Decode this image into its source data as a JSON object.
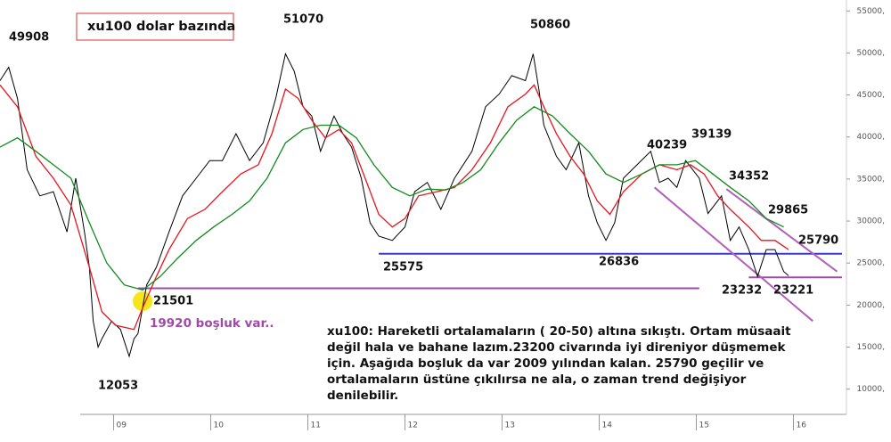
{
  "chart_data": {
    "type": "line",
    "title": "xu100 dolar bazında",
    "xlim": [
      2007.83,
      2016.546
    ],
    "ylim": [
      7000,
      56300
    ],
    "xticks": [
      {
        "value": 2009,
        "label": "09"
      },
      {
        "value": 2010,
        "label": "10"
      },
      {
        "value": 2011,
        "label": "11"
      },
      {
        "value": 2012,
        "label": "12"
      },
      {
        "value": 2013,
        "label": "13"
      },
      {
        "value": 2014,
        "label": "14"
      },
      {
        "value": 2015,
        "label": "15"
      },
      {
        "value": 2016,
        "label": "16"
      }
    ],
    "yticks": [
      {
        "value": 10000,
        "label": "10000,"
      },
      {
        "value": 15000,
        "label": "15000,"
      },
      {
        "value": 20000,
        "label": "20000,"
      },
      {
        "value": 25000,
        "label": "25000,"
      },
      {
        "value": 30000,
        "label": "30000,"
      },
      {
        "value": 35000,
        "label": "35000,"
      },
      {
        "value": 40000,
        "label": "40000,"
      },
      {
        "value": 45000,
        "label": "45000,"
      },
      {
        "value": 50000,
        "label": "50000,"
      },
      {
        "value": 55000,
        "label": "55000,"
      }
    ],
    "series": [
      {
        "color": "#000000",
        "x": [
          2007.83,
          2007.92,
          2008.01,
          2008.11,
          2008.24,
          2008.38,
          2008.52,
          2008.61,
          2008.7,
          2008.75,
          2008.79,
          2008.84,
          2008.88,
          2008.98,
          2009.07,
          2009.16,
          2009.21,
          2009.25,
          2009.34,
          2009.44,
          2009.57,
          2009.71,
          2009.85,
          2009.99,
          2010.12,
          2010.26,
          2010.4,
          2010.54,
          2010.67,
          2010.77,
          2010.86,
          2010.95,
          2011.04,
          2011.13,
          2011.27,
          2011.36,
          2011.45,
          2011.55,
          2011.64,
          2011.73,
          2011.87,
          2012.0,
          2012.1,
          2012.23,
          2012.37,
          2012.51,
          2012.69,
          2012.83,
          2012.97,
          2013.1,
          2013.24,
          2013.32,
          2013.38,
          2013.43,
          2013.56,
          2013.66,
          2013.79,
          2013.89,
          2013.98,
          2014.07,
          2014.16,
          2014.25,
          2014.39,
          2014.53,
          2014.62,
          2014.71,
          2014.8,
          2014.89,
          2015.03,
          2015.12,
          2015.26,
          2015.35,
          2015.44,
          2015.54,
          2015.63,
          2015.72,
          2015.81,
          2015.9,
          2015.95
        ],
        "values": [
          46700,
          48300,
          44600,
          36100,
          33000,
          33500,
          28700,
          35100,
          28700,
          24500,
          18100,
          15000,
          16000,
          18100,
          17100,
          13900,
          16000,
          16600,
          22400,
          24500,
          28700,
          33000,
          35100,
          37200,
          37200,
          40400,
          37200,
          39300,
          44600,
          49900,
          47800,
          43600,
          42500,
          38300,
          42500,
          40400,
          38800,
          35100,
          29800,
          28200,
          27700,
          29300,
          33500,
          34600,
          31400,
          35100,
          38300,
          43600,
          45100,
          47300,
          46700,
          49900,
          45600,
          41400,
          37700,
          36100,
          39300,
          33000,
          29800,
          27700,
          29800,
          35100,
          36700,
          38300,
          34600,
          35100,
          34000,
          37200,
          35100,
          30900,
          33000,
          27700,
          29300,
          26600,
          23400,
          26600,
          26600,
          24000,
          23500
        ]
      },
      {
        "color": "#e8141e",
        "x": [
          2007.83,
          2008.01,
          2008.2,
          2008.38,
          2008.56,
          2008.75,
          2008.88,
          2009.02,
          2009.21,
          2009.3,
          2009.44,
          2009.57,
          2009.76,
          2009.94,
          2010.12,
          2010.31,
          2010.49,
          2010.63,
          2010.77,
          2010.9,
          2011.04,
          2011.18,
          2011.32,
          2011.45,
          2011.59,
          2011.73,
          2011.87,
          2012.0,
          2012.14,
          2012.33,
          2012.51,
          2012.69,
          2012.88,
          2013.06,
          2013.24,
          2013.33,
          2013.43,
          2013.56,
          2013.7,
          2013.84,
          2013.98,
          2014.11,
          2014.25,
          2014.44,
          2014.62,
          2014.8,
          2014.94,
          2015.08,
          2015.22,
          2015.35,
          2015.54,
          2015.67,
          2015.81,
          2015.95
        ],
        "values": [
          46200,
          43600,
          37700,
          35100,
          31900,
          24500,
          19200,
          17600,
          17100,
          19700,
          23400,
          26600,
          30300,
          31400,
          33500,
          35600,
          36700,
          40400,
          45700,
          44600,
          42000,
          39900,
          40900,
          39300,
          35100,
          30800,
          29300,
          30300,
          33000,
          33500,
          34000,
          36100,
          39300,
          43600,
          45100,
          46200,
          43600,
          40400,
          37700,
          35600,
          32400,
          30800,
          33500,
          35600,
          36700,
          36100,
          36700,
          35600,
          33000,
          31400,
          29300,
          27700,
          27700,
          26600
        ]
      },
      {
        "color": "#138a1e",
        "x": [
          2007.83,
          2008.01,
          2008.2,
          2008.38,
          2008.56,
          2008.75,
          2008.93,
          2009.11,
          2009.3,
          2009.48,
          2009.66,
          2009.85,
          2010.03,
          2010.22,
          2010.4,
          2010.58,
          2010.77,
          2010.95,
          2011.13,
          2011.32,
          2011.5,
          2011.68,
          2011.87,
          2012.05,
          2012.23,
          2012.42,
          2012.6,
          2012.78,
          2012.97,
          2013.15,
          2013.33,
          2013.52,
          2013.7,
          2013.89,
          2014.07,
          2014.25,
          2014.44,
          2014.62,
          2014.8,
          2014.99,
          2015.17,
          2015.35,
          2015.54,
          2015.72,
          2015.9
        ],
        "values": [
          38800,
          39900,
          38300,
          36700,
          35100,
          29800,
          25000,
          22400,
          21800,
          23400,
          25600,
          27700,
          29300,
          30800,
          32400,
          35100,
          39300,
          40900,
          41400,
          41400,
          39900,
          36700,
          34000,
          33000,
          33800,
          33700,
          34600,
          36100,
          39300,
          42000,
          43600,
          42500,
          40400,
          38300,
          35600,
          34600,
          35600,
          36700,
          36700,
          37200,
          35600,
          34000,
          32400,
          30300,
          29300
        ]
      }
    ],
    "lines": [
      {
        "color": "#3a3ac8",
        "x": [
          2011.73,
          2016.5
        ],
        "values": [
          26100,
          26100
        ]
      },
      {
        "color": "#a04aa8",
        "x": [
          2009.25,
          2015.03
        ],
        "values": [
          22000,
          22000
        ]
      },
      {
        "color": "#a04aa8",
        "x": [
          2015.54,
          2016.5
        ],
        "values": [
          23300,
          23300
        ]
      },
      {
        "color": "#b060b8",
        "x": [
          2015.31,
          2016.45
        ],
        "values": [
          33800,
          24000
        ]
      },
      {
        "color": "#b060b8",
        "x": [
          2014.57,
          2016.2
        ],
        "values": [
          34000,
          18100
        ]
      }
    ],
    "peak_labels": [
      49908,
      12053,
      21501,
      51070,
      25575,
      50860,
      26836,
      40239,
      39139,
      34352,
      29865,
      25790,
      23232,
      23221
    ],
    "gap_note": "19920 boşluk var..",
    "note": [
      "xu100: Hareketli ortalamaların ( 20-50) altına sıkıştı. Ortam müsaait",
      "değil hala ve bahane lazım.23200 civarında iyi direniyor düşmemek",
      "için. Aşağıda boşluk da var 2009 yılından kalan. 25790 geçilir ve",
      "ortalamaların üstüne çıkılırsa ne ala, o zaman trend değişiyor",
      "denilebilir."
    ]
  }
}
